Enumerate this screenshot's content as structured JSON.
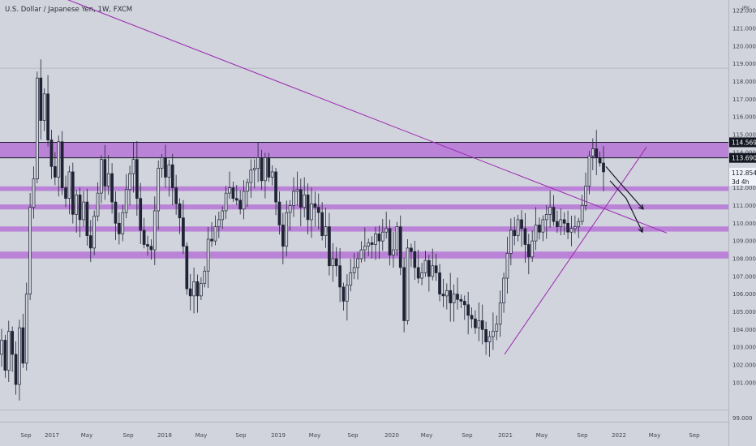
{
  "chart_data": {
    "type": "candlestick",
    "title": "U.S. Dollar / Japanese Yen, 1W, FXCM",
    "currency_badge": "JPY",
    "currency_badge_sub": "JPY",
    "y_ticks": [
      99.0,
      100.0,
      101.0,
      102.0,
      103.0,
      104.0,
      105.0,
      106.0,
      107.0,
      108.0,
      109.0,
      110.0,
      111.0,
      112.0,
      113.0,
      114.0,
      115.0,
      116.0,
      117.0,
      118.0,
      119.0,
      120.0,
      121.0,
      122.0
    ],
    "y_tick_labels": [
      "99.000",
      "101.000",
      "102.000",
      "103.000",
      "104.000",
      "105.000",
      "106.000",
      "107.000",
      "108.000",
      "109.000",
      "110.000",
      "111.000",
      "112.000",
      "114.000",
      "115.000",
      "116.000",
      "117.000",
      "118.000",
      "119.000",
      "120.000",
      "121.000",
      "122.000"
    ],
    "ylim": [
      98.8,
      122.6
    ],
    "x_tick_labels": [
      "Sep",
      "2017",
      "May",
      "Sep",
      "2018",
      "May",
      "Sep",
      "2019",
      "May",
      "Sep",
      "2020",
      "May",
      "Sep",
      "2021",
      "May",
      "Sep",
      "2022",
      "May",
      "Sep"
    ],
    "x_tick_positions": [
      32,
      64,
      107,
      158,
      203,
      248,
      297,
      343,
      388,
      435,
      483,
      526,
      576,
      623,
      668,
      718,
      763,
      807,
      856
    ],
    "price_tags": [
      {
        "value": 114.569,
        "label": "114.569",
        "style": "dark"
      },
      {
        "value": 113.69,
        "label": "113.690",
        "style": "dark"
      },
      {
        "value": 112.854,
        "label": "112.854",
        "style": "light"
      }
    ],
    "countdown": "3d 4h",
    "zones": [
      {
        "from": 113.69,
        "to": 114.569
      },
      {
        "from": 111.82,
        "to": 112.08
      },
      {
        "from": 110.78,
        "to": 111.06
      },
      {
        "from": 109.53,
        "to": 109.82
      },
      {
        "from": 108.01,
        "to": 108.4
      }
    ],
    "trendlines": [
      {
        "x1": 62,
        "y1": 123.0,
        "x2": 822,
        "y2": 109.45
      },
      {
        "x1": 622,
        "y1": 102.6,
        "x2": 797,
        "y2": 114.3
      }
    ],
    "hlines": [
      118.75,
      99.45
    ],
    "arrows": [
      {
        "points": [
          [
            747,
            113.2
          ],
          [
            762,
            112.4
          ],
          [
            793,
            110.8
          ]
        ]
      },
      {
        "points": [
          [
            752,
            112.4
          ],
          [
            772,
            111.4
          ],
          [
            792,
            109.5
          ]
        ]
      }
    ],
    "weekly_closes": [
      103.4,
      101.7,
      103.9,
      102.6,
      100.9,
      104.1,
      102.1,
      106.0,
      110.9,
      112.5,
      118.2,
      115.8,
      117.3,
      114.7,
      113.2,
      112.6,
      114.6,
      112.0,
      111.4,
      112.9,
      110.5,
      111.6,
      110.2,
      111.2,
      109.3,
      108.6,
      110.4,
      111.7,
      113.6,
      112.1,
      112.8,
      111.2,
      110.0,
      109.4,
      110.6,
      111.9,
      112.8,
      113.6,
      111.4,
      109.6,
      108.8,
      108.7,
      108.5,
      110.7,
      113.1,
      113.7,
      112.6,
      113.3,
      112.0,
      111.1,
      110.3,
      108.7,
      106.3,
      105.9,
      106.7,
      105.9,
      106.6,
      107.3,
      109.1,
      109.0,
      109.8,
      110.2,
      110.7,
      111.7,
      112.0,
      111.4,
      111.3,
      110.8,
      111.8,
      112.3,
      113.0,
      113.1,
      113.7,
      112.4,
      113.7,
      112.6,
      112.9,
      111.2,
      109.9,
      108.7,
      110.6,
      111.0,
      111.8,
      111.9,
      110.9,
      111.6,
      110.2,
      111.1,
      110.9,
      110.6,
      109.3,
      109.8,
      107.6,
      108.0,
      107.6,
      106.4,
      105.6,
      106.5,
      107.2,
      107.5,
      108.0,
      108.5,
      108.7,
      108.9,
      108.8,
      109.4,
      109.0,
      109.5,
      109.7,
      108.2,
      108.5,
      109.8,
      107.5,
      104.5,
      108.6,
      108.4,
      107.5,
      106.9,
      107.2,
      107.9,
      107.0,
      107.6,
      107.2,
      106.0,
      105.9,
      106.2,
      105.5,
      106.0,
      105.7,
      105.6,
      105.4,
      104.8,
      104.6,
      104.1,
      104.5,
      104.0,
      103.3,
      103.6,
      103.9,
      104.3,
      105.5,
      106.9,
      108.3,
      109.6,
      109.3,
      110.2,
      109.7,
      108.8,
      108.1,
      109.0,
      109.9,
      109.5,
      110.2,
      110.5,
      110.9,
      110.1,
      109.8,
      110.2,
      110.0,
      109.5,
      109.7,
      109.8,
      110.1,
      111.0,
      112.1,
      113.8,
      114.2,
      113.7,
      113.4,
      112.9
    ]
  }
}
